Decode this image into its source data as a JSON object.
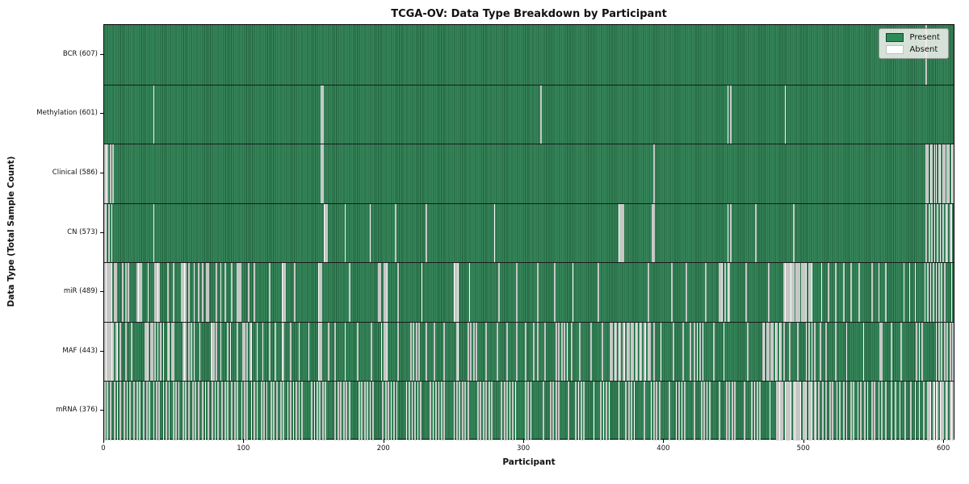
{
  "chart_data": {
    "type": "heatmap",
    "title": "TCGA-OV: Data Type Breakdown by Participant",
    "xlabel": "Participant",
    "ylabel": "Data Type (Total Sample Count)",
    "x_ticks": [
      0,
      100,
      200,
      300,
      400,
      500,
      600
    ],
    "x_range": [
      0,
      608
    ],
    "n_participants": 608,
    "grid": false,
    "legend_position": "upper right",
    "legend": [
      {
        "label": "Present",
        "color": "#2e8b57"
      },
      {
        "label": "Absent",
        "color": "#ffffff"
      }
    ],
    "rows": [
      {
        "label": "BCR (607)",
        "data_type": "BCR",
        "present_count": 607,
        "absent_count": 1,
        "absent_participants": [
          588
        ]
      },
      {
        "label": "Methylation (601)",
        "data_type": "Methylation",
        "present_count": 601,
        "absent_count": 7,
        "absent_participants": [
          35,
          155,
          156,
          312,
          446,
          448,
          487
        ]
      },
      {
        "label": "Clinical (586)",
        "data_type": "Clinical",
        "present_count": 586,
        "absent_count": 22,
        "absent_participants": [
          0,
          1,
          2,
          4,
          6,
          155,
          156,
          393,
          588,
          589,
          591,
          592,
          594,
          595,
          597,
          598,
          600,
          601,
          603,
          604,
          606,
          607
        ]
      },
      {
        "label": "CN (573)",
        "data_type": "CN",
        "present_count": 573,
        "absent_count": 35,
        "absent_participants": [
          0,
          1,
          3,
          5,
          35,
          157,
          158,
          159,
          172,
          190,
          208,
          230,
          279,
          368,
          369,
          370,
          371,
          392,
          393,
          446,
          448,
          466,
          493,
          588,
          590,
          592,
          594,
          596,
          598,
          600,
          602,
          603,
          605,
          606,
          608
        ]
      },
      {
        "label": "miR (489)",
        "data_type": "miR",
        "present_count": 489,
        "absent_count": 119,
        "absent_participants": [
          0,
          1,
          2,
          3,
          4,
          5,
          7,
          8,
          13,
          15,
          17,
          23,
          24,
          25,
          26,
          31,
          36,
          37,
          38,
          39,
          45,
          49,
          55,
          56,
          57,
          58,
          60,
          64,
          67,
          70,
          73,
          74,
          80,
          83,
          86,
          91,
          95,
          96,
          97,
          103,
          107,
          118,
          127,
          128,
          129,
          136,
          153,
          154,
          155,
          175,
          196,
          197,
          200,
          201,
          202,
          210,
          227,
          250,
          251,
          252,
          253,
          261,
          282,
          295,
          310,
          322,
          335,
          353,
          389,
          406,
          416,
          430,
          440,
          441,
          442,
          444,
          446,
          447,
          459,
          475,
          486,
          487,
          488,
          489,
          490,
          491,
          492,
          493,
          495,
          496,
          497,
          499,
          500,
          501,
          502,
          504,
          505,
          506,
          513,
          518,
          523,
          529,
          534,
          540,
          549,
          554,
          559,
          572,
          576,
          580,
          587,
          589,
          591,
          593,
          595,
          597,
          599,
          601,
          606
        ]
      },
      {
        "label": "MAF (443)",
        "data_type": "MAF",
        "present_count": 443,
        "absent_count": 165,
        "absent_participants": [
          0,
          1,
          2,
          3,
          4,
          5,
          6,
          8,
          9,
          11,
          15,
          19,
          29,
          30,
          31,
          33,
          34,
          36,
          38,
          40,
          42,
          45,
          46,
          48,
          49,
          56,
          57,
          58,
          60,
          62,
          64,
          68,
          76,
          77,
          78,
          80,
          83,
          88,
          90,
          95,
          99,
          100,
          102,
          104,
          105,
          109,
          113,
          118,
          122,
          127,
          128,
          133,
          139,
          146,
          153,
          154,
          155,
          160,
          165,
          172,
          181,
          191,
          198,
          200,
          201,
          202,
          210,
          219,
          221,
          223,
          225,
          230,
          236,
          243,
          252,
          253,
          260,
          262,
          264,
          266,
          273,
          281,
          288,
          295,
          301,
          307,
          310,
          315,
          323,
          325,
          327,
          329,
          331,
          334,
          340,
          348,
          356,
          362,
          363,
          365,
          366,
          368,
          369,
          371,
          372,
          374,
          375,
          377,
          378,
          380,
          381,
          383,
          384,
          386,
          387,
          389,
          390,
          393,
          398,
          407,
          414,
          419,
          422,
          424,
          426,
          428,
          436,
          443,
          460,
          471,
          472,
          474,
          475,
          477,
          478,
          480,
          481,
          483,
          484,
          486,
          490,
          496,
          502,
          504,
          506,
          508,
          512,
          516,
          523,
          531,
          543,
          555,
          556,
          563,
          570,
          581,
          583,
          585,
          595,
          597,
          599,
          601,
          603,
          605,
          607
        ]
      },
      {
        "label": "mRNA (376)",
        "data_type": "mRNA",
        "present_count": 376,
        "absent_count": 232,
        "absent_participants": [
          0,
          2,
          4,
          7,
          9,
          11,
          14,
          16,
          18,
          21,
          23,
          25,
          28,
          30,
          32,
          35,
          37,
          39,
          42,
          44,
          46,
          49,
          51,
          53,
          56,
          58,
          60,
          63,
          65,
          67,
          70,
          72,
          74,
          77,
          79,
          81,
          84,
          86,
          88,
          91,
          93,
          95,
          98,
          100,
          102,
          105,
          107,
          109,
          112,
          114,
          116,
          119,
          121,
          123,
          126,
          128,
          131,
          133,
          135,
          137,
          139,
          141,
          148,
          150,
          152,
          154,
          156,
          158,
          165,
          167,
          169,
          171,
          173,
          175,
          182,
          184,
          186,
          188,
          190,
          192,
          199,
          201,
          203,
          205,
          207,
          209,
          216,
          218,
          220,
          222,
          224,
          226,
          233,
          235,
          237,
          239,
          241,
          243,
          250,
          252,
          254,
          256,
          258,
          260,
          267,
          269,
          271,
          273,
          275,
          277,
          284,
          286,
          288,
          290,
          292,
          294,
          301,
          303,
          305,
          314,
          319,
          321,
          323,
          325,
          332,
          337,
          339,
          341,
          343,
          350,
          355,
          357,
          359,
          361,
          368,
          373,
          375,
          377,
          379,
          386,
          391,
          393,
          395,
          397,
          404,
          409,
          411,
          413,
          415,
          422,
          427,
          429,
          431,
          433,
          440,
          445,
          447,
          449,
          451,
          458,
          463,
          465,
          467,
          469,
          476,
          481,
          482,
          483,
          484,
          485,
          487,
          488,
          489,
          490,
          491,
          493,
          494,
          495,
          496,
          497,
          498,
          500,
          501,
          502,
          504,
          505,
          506,
          508,
          509,
          511,
          514,
          516,
          519,
          521,
          524,
          526,
          529,
          531,
          534,
          536,
          539,
          541,
          544,
          546,
          549,
          551,
          554,
          556,
          559,
          563,
          566,
          569,
          573,
          577,
          580,
          583,
          586,
          589,
          590,
          591,
          593,
          594,
          595,
          596,
          598,
          599,
          600,
          602,
          603,
          605,
          606,
          607
        ]
      }
    ],
    "colors": {
      "present_fill": "#2e8b57",
      "present_edge": "#1f5e3b",
      "absent_fill": "#ffffff",
      "absent_edge": "#90958f",
      "row_separator": "#1a1a1a",
      "legend_background": "#f3f3ee"
    }
  }
}
